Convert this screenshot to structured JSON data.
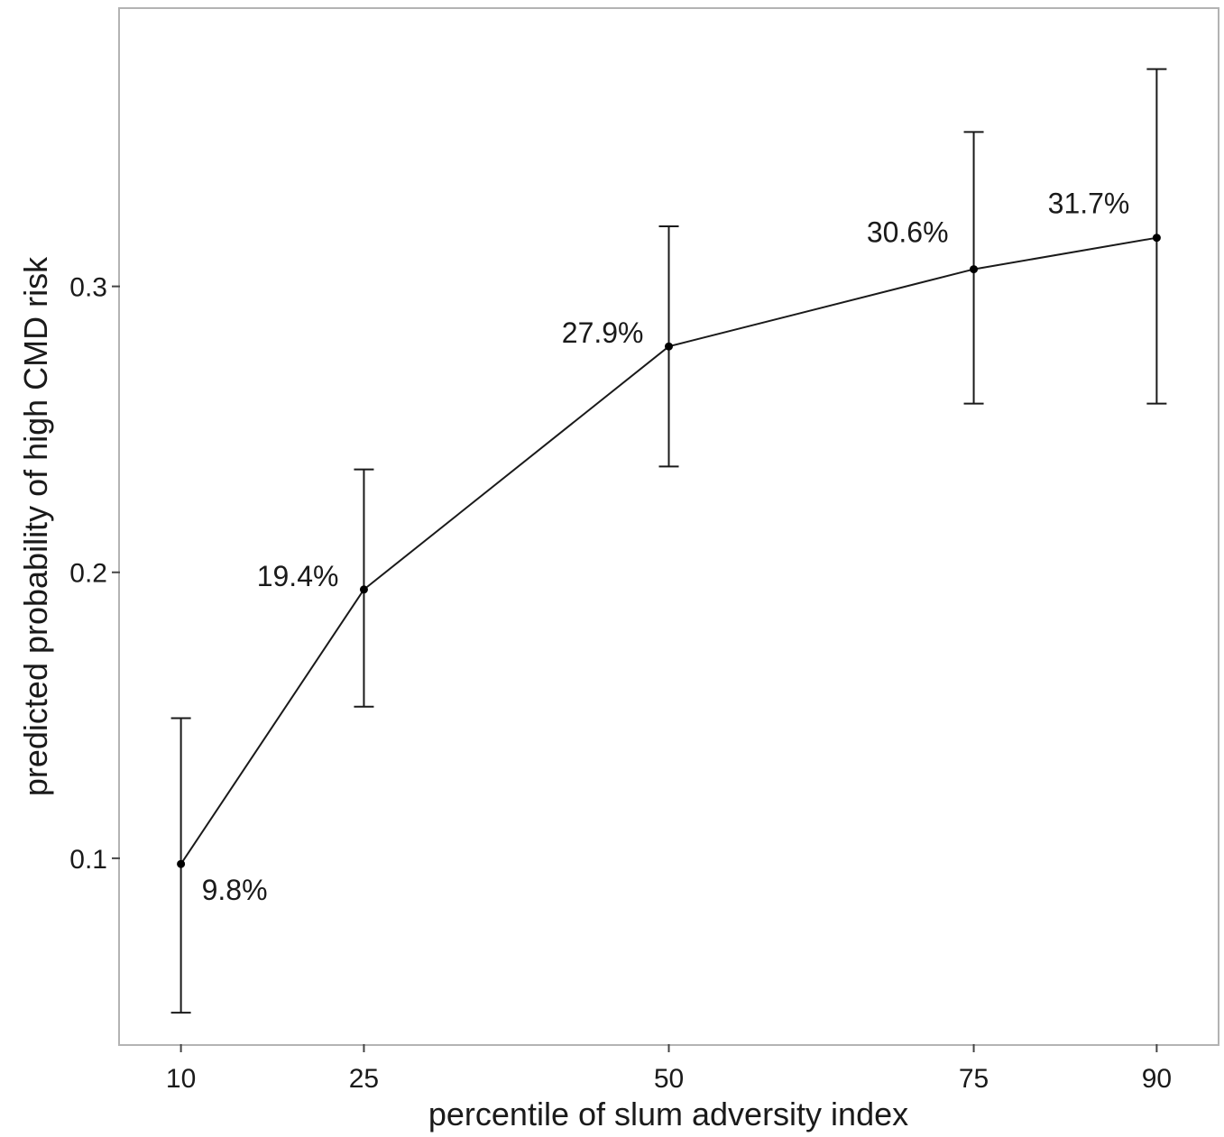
{
  "chart_data": {
    "type": "line",
    "xlabel": "percentile of slum adversity index",
    "ylabel": "predicted probability of high CMD risk",
    "x_ticks": [
      "10",
      "25",
      "50",
      "75",
      "90"
    ],
    "y_ticks": [
      "0.1",
      "0.2",
      "0.3"
    ],
    "xlim": [
      5,
      95
    ],
    "ylim": [
      0.035,
      0.397
    ],
    "grid": false,
    "series": [
      {
        "x": [
          10,
          25,
          50,
          75,
          90
        ],
        "y": [
          0.098,
          0.194,
          0.279,
          0.306,
          0.317
        ],
        "ci_low": [
          0.046,
          0.153,
          0.237,
          0.259,
          0.259
        ],
        "ci_high": [
          0.149,
          0.236,
          0.321,
          0.354,
          0.376
        ],
        "labels": [
          "9.8%",
          "19.4%",
          "27.9%",
          "30.6%",
          "31.7%"
        ]
      }
    ]
  }
}
